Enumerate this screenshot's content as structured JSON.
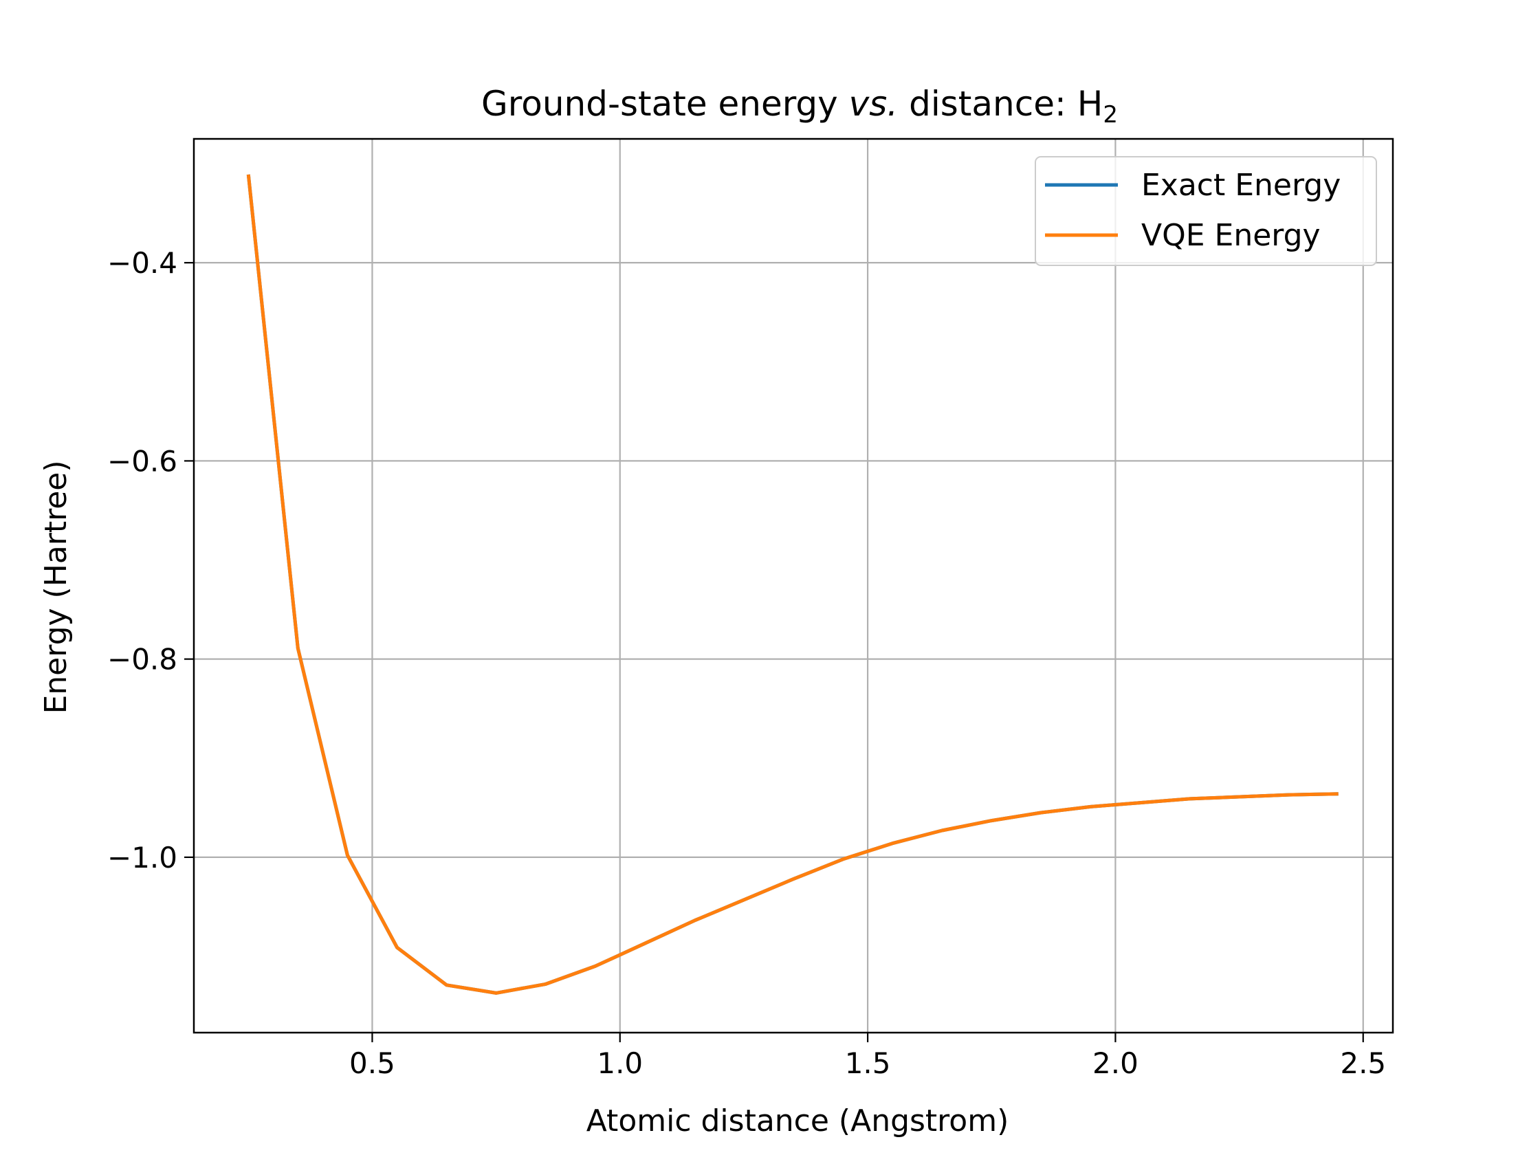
{
  "chart_data": {
    "type": "line",
    "title": {
      "prefix": "Ground-state energy ",
      "italic": "vs.",
      "middle": " distance: H",
      "subscript": "2"
    },
    "xlabel": "Atomic distance (Angstrom)",
    "ylabel": "Energy (Hartree)",
    "xlim": [
      0.14,
      2.56
    ],
    "ylim": [
      -1.177,
      -0.275
    ],
    "xticks": [
      0.5,
      1.0,
      1.5,
      2.0,
      2.5
    ],
    "xtick_labels": [
      "0.5",
      "1.0",
      "1.5",
      "2.0",
      "2.5"
    ],
    "yticks": [
      -1.0,
      -0.8,
      -0.6,
      -0.4
    ],
    "ytick_labels": [
      "−1.0",
      "−0.8",
      "−0.6",
      "−0.4"
    ],
    "grid": true,
    "legend_position": "top-right",
    "x": [
      0.25,
      0.35,
      0.45,
      0.55,
      0.65,
      0.75,
      0.85,
      0.95,
      1.05,
      1.15,
      1.25,
      1.35,
      1.45,
      1.55,
      1.65,
      1.75,
      1.85,
      1.95,
      2.05,
      2.15,
      2.25,
      2.35,
      2.45
    ],
    "series": [
      {
        "name": "Exact Energy",
        "color": "#1f77b4",
        "values": [
          -0.311,
          -0.789,
          -0.998,
          -1.091,
          -1.129,
          -1.137,
          -1.128,
          -1.11,
          -1.087,
          -1.064,
          -1.043,
          -1.022,
          -1.002,
          -0.986,
          -0.973,
          -0.963,
          -0.955,
          -0.949,
          -0.945,
          -0.941,
          -0.939,
          -0.937,
          -0.936
        ]
      },
      {
        "name": "VQE Energy",
        "color": "#ff7f0e",
        "values": [
          -0.311,
          -0.789,
          -0.998,
          -1.091,
          -1.129,
          -1.137,
          -1.128,
          -1.11,
          -1.087,
          -1.064,
          -1.043,
          -1.022,
          -1.002,
          -0.986,
          -0.973,
          -0.963,
          -0.955,
          -0.949,
          -0.945,
          -0.941,
          -0.939,
          -0.937,
          -0.936
        ]
      }
    ]
  }
}
